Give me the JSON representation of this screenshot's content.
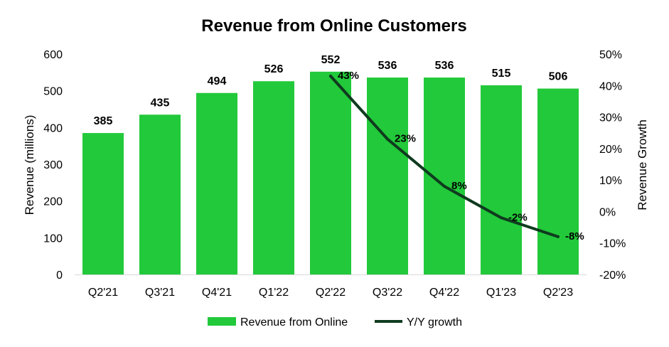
{
  "chart_data": {
    "type": "bar",
    "title": "Revenue from Online Customers",
    "categories": [
      "Q2'21",
      "Q3'21",
      "Q4'21",
      "Q1'22",
      "Q2'22",
      "Q3'22",
      "Q4'22",
      "Q1'23",
      "Q2'23"
    ],
    "series": [
      {
        "name": "Revenue from Online",
        "type": "bar",
        "axis": "left",
        "color": "#22c93a",
        "values": [
          385,
          435,
          494,
          526,
          552,
          536,
          536,
          515,
          506
        ],
        "labels": [
          "385",
          "435",
          "494",
          "526",
          "552",
          "536",
          "536",
          "515",
          "506"
        ]
      },
      {
        "name": "Y/Y growth",
        "type": "line",
        "axis": "right",
        "color": "#0f3b1f",
        "values": [
          null,
          null,
          null,
          null,
          43,
          23,
          8,
          -2,
          -8
        ],
        "labels": [
          "",
          "",
          "",
          "",
          "43%",
          "23%",
          "8%",
          "-2%",
          "-8%"
        ]
      }
    ],
    "ylabel": "Revenue (millions)",
    "y2label": "Revenue Growth",
    "ylim": [
      0,
      600
    ],
    "y2lim": [
      -20,
      50
    ],
    "yticks": [
      "0",
      "100",
      "200",
      "300",
      "400",
      "500",
      "600"
    ],
    "y2ticks": [
      "-20%",
      "-10%",
      "0%",
      "10%",
      "20%",
      "30%",
      "40%",
      "50%"
    ],
    "grid": false,
    "legend_position": "bottom"
  }
}
